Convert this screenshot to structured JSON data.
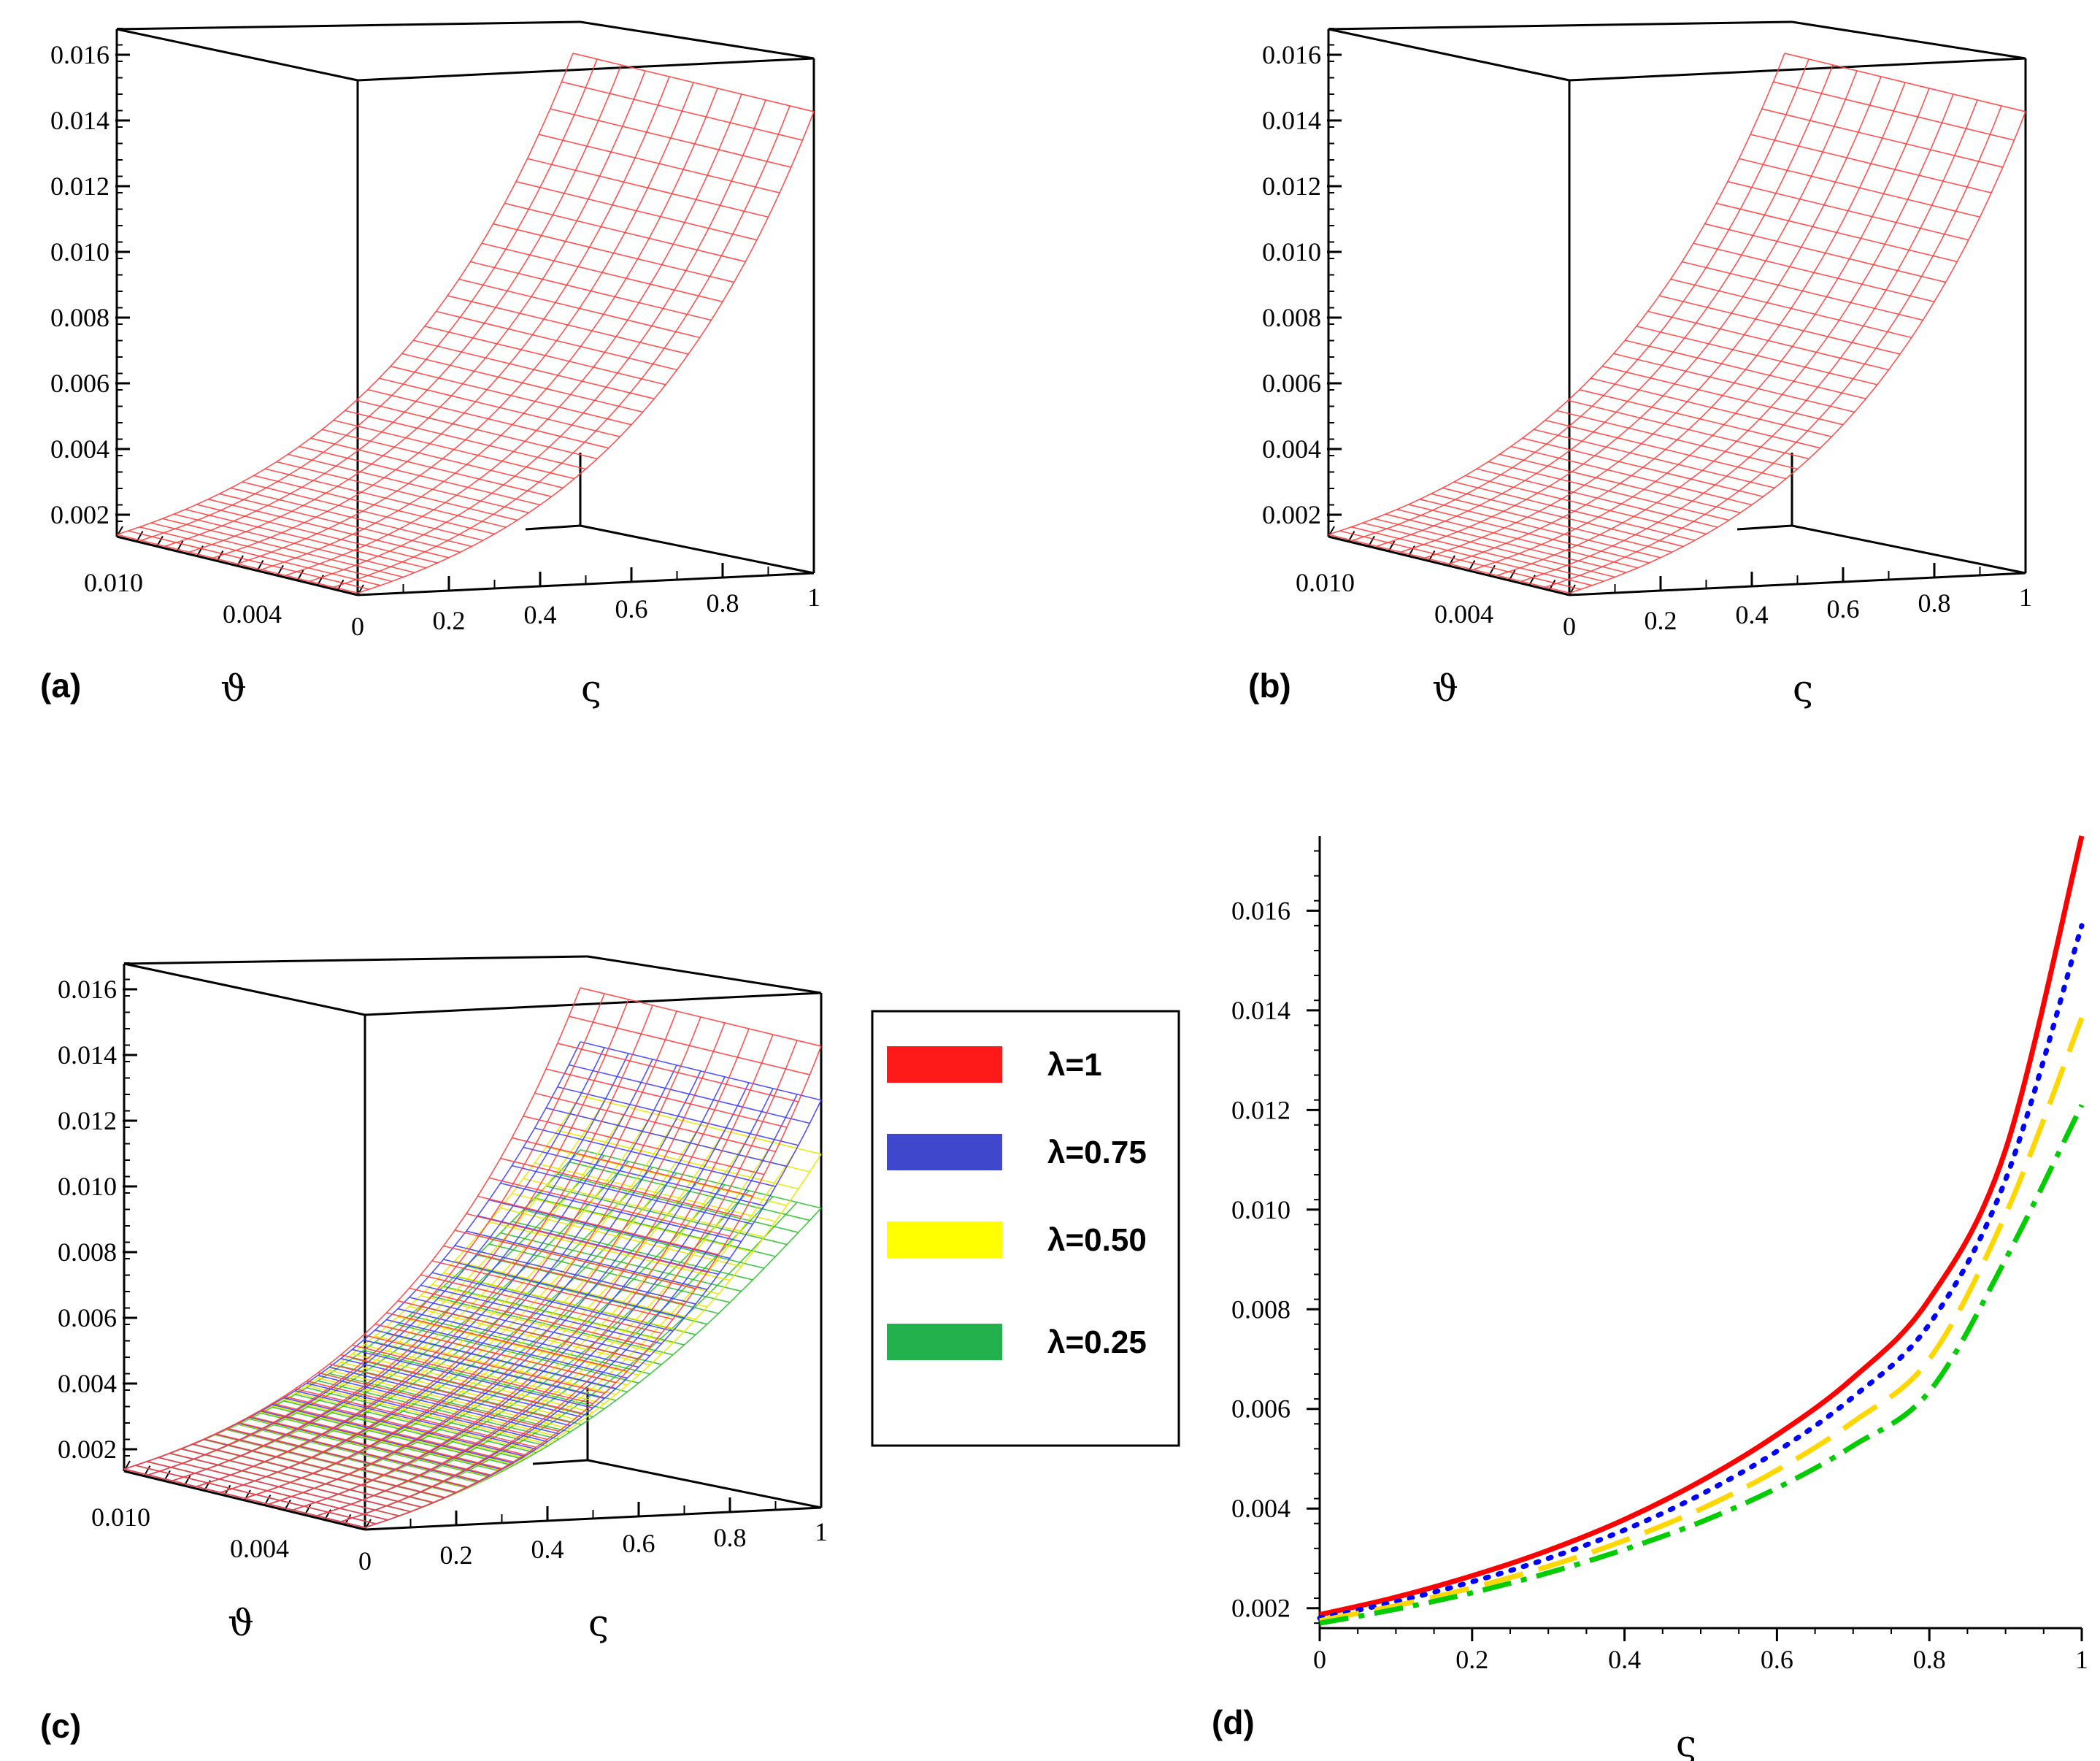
{
  "chart_data": [
    {
      "type": "surface3d",
      "panel": "(a)",
      "zlabel_ticks": [
        "0.002",
        "0.004",
        "0.006",
        "0.008",
        "0.010",
        "0.012",
        "0.014",
        "0.016"
      ],
      "zlim": [
        0.0018,
        0.0175
      ],
      "x_ticks": [
        "0",
        "0.2",
        "0.4",
        "0.6",
        "0.8",
        "1"
      ],
      "xlabel": "ς",
      "y_ticks": [
        "0.010",
        "0.004"
      ],
      "ylabel": "ϑ",
      "series": [
        {
          "name": "λ=1",
          "color": "#ff4040",
          "z_at_x": [
            0.00187,
            0.00262,
            0.00369,
            0.00521,
            0.0074,
            0.0105,
            0.0175
          ]
        }
      ],
      "x_samples": [
        0,
        0.2,
        0.4,
        0.6,
        0.8,
        0.9,
        1
      ]
    },
    {
      "type": "surface3d",
      "panel": "(b)",
      "zlabel_ticks": [
        "0.002",
        "0.004",
        "0.006",
        "0.008",
        "0.010",
        "0.012",
        "0.014",
        "0.016"
      ],
      "zlim": [
        0.0018,
        0.0175
      ],
      "x_ticks": [
        "0",
        "0.2",
        "0.4",
        "0.6",
        "0.8",
        "1"
      ],
      "xlabel": "ς",
      "y_ticks": [
        "0.010",
        "0.004"
      ],
      "ylabel": "ϑ",
      "series": [
        {
          "name": "λ=1",
          "color": "#ff4040",
          "z_at_x": [
            0.00187,
            0.00262,
            0.00369,
            0.00521,
            0.0074,
            0.0105,
            0.0175
          ]
        }
      ],
      "x_samples": [
        0,
        0.2,
        0.4,
        0.6,
        0.8,
        0.9,
        1
      ]
    },
    {
      "type": "surface3d",
      "panel": "(c)",
      "zlabel_ticks": [
        "0.002",
        "0.004",
        "0.006",
        "0.008",
        "0.010",
        "0.012",
        "0.014",
        "0.016"
      ],
      "zlim": [
        0.0018,
        0.0175
      ],
      "x_ticks": [
        "0",
        "0.2",
        "0.4",
        "0.6",
        "0.8",
        "1"
      ],
      "xlabel": "ς",
      "y_ticks": [
        "0.010",
        "0.004"
      ],
      "ylabel": "ϑ",
      "series": [
        {
          "name": "λ=1",
          "color": "#ff4040"
        },
        {
          "name": "λ=0.75",
          "color": "#4040ff"
        },
        {
          "name": "λ=0.50",
          "color": "#e8e800"
        },
        {
          "name": "λ=0.25",
          "color": "#30c030"
        }
      ],
      "x_samples": [
        0,
        0.2,
        0.4,
        0.6,
        0.8,
        1
      ]
    },
    {
      "type": "line",
      "panel": "(d)",
      "xlabel": "ς",
      "x_ticks": [
        "0",
        "0.2",
        "0.4",
        "0.6",
        "0.8",
        "1"
      ],
      "y_ticks": [
        "0.002",
        "0.004",
        "0.006",
        "0.008",
        "0.010",
        "0.012",
        "0.014",
        "0.016"
      ],
      "xlim": [
        0,
        1
      ],
      "ylim": [
        0.0016,
        0.0175
      ],
      "x": [
        0,
        0.1,
        0.2,
        0.3,
        0.4,
        0.5,
        0.6,
        0.7,
        0.8,
        0.9,
        1.0
      ],
      "series": [
        {
          "name": "λ=1",
          "color": "#ff0000",
          "style": "solid",
          "values": [
            0.00187,
            0.00222,
            0.00265,
            0.00316,
            0.00378,
            0.00455,
            0.00548,
            0.00662,
            0.0082,
            0.0112,
            0.0175
          ]
        },
        {
          "name": "λ=0.75",
          "color": "#0000ff",
          "style": "dotted",
          "values": [
            0.0018,
            0.00213,
            0.00253,
            0.003,
            0.00357,
            0.00428,
            0.00515,
            0.00624,
            0.0077,
            0.0106,
            0.0157
          ]
        },
        {
          "name": "λ=0.50",
          "color": "#ffd700",
          "style": "dashed",
          "values": [
            0.00175,
            0.00205,
            0.00241,
            0.00284,
            0.00336,
            0.00399,
            0.00477,
            0.00574,
            0.007,
            0.0099,
            0.01385
          ]
        },
        {
          "name": "λ=0.25",
          "color": "#00cc00",
          "style": "dashdot",
          "values": [
            0.0017,
            0.00198,
            0.00231,
            0.00271,
            0.00318,
            0.00373,
            0.00441,
            0.00526,
            0.00635,
            0.009,
            0.0121
          ]
        }
      ]
    }
  ],
  "legend": [
    {
      "label": "λ=1",
      "color": "#ff1a1a"
    },
    {
      "label": "λ=0.75",
      "color": "#3f48cc"
    },
    {
      "label": "λ=0.50",
      "color": "#ffff00"
    },
    {
      "label": "λ=0.25",
      "color": "#22b14c"
    }
  ],
  "labels": {
    "a": "(a)",
    "b": "(b)",
    "c": "(c)",
    "d": "(d)"
  }
}
